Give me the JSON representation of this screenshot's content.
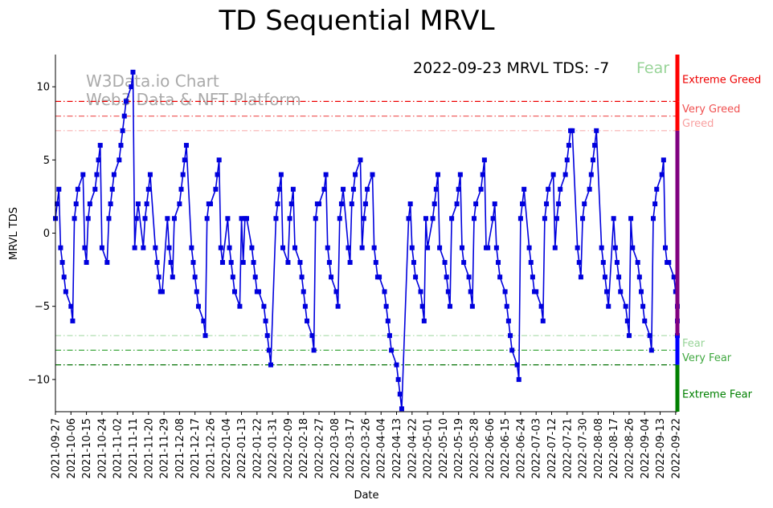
{
  "chart_data": {
    "type": "line",
    "title": "TD Sequential MRVL",
    "xlabel": "Date",
    "ylabel": "MRVL TDS",
    "ylim": [
      -12.2,
      12.2
    ],
    "yticks": [
      10,
      5,
      0,
      -5,
      -10
    ],
    "ytick_labels": [
      "10",
      "5",
      "0",
      "−5",
      "−10"
    ],
    "x_tick_labels": [
      "2021-09-27",
      "2021-10-06",
      "2021-10-15",
      "2021-10-24",
      "2021-11-02",
      "2021-11-11",
      "2021-11-20",
      "2021-11-29",
      "2021-12-08",
      "2021-12-17",
      "2021-12-26",
      "2022-01-04",
      "2022-01-13",
      "2022-01-22",
      "2022-01-31",
      "2022-02-09",
      "2022-02-18",
      "2022-02-27",
      "2022-03-08",
      "2022-03-17",
      "2022-03-26",
      "2022-04-04",
      "2022-04-13",
      "2022-04-22",
      "2022-05-01",
      "2022-05-10",
      "2022-05-19",
      "2022-05-28",
      "2022-06-06",
      "2022-06-15",
      "2022-06-24",
      "2022-07-03",
      "2022-07-12",
      "2022-07-21",
      "2022-07-30",
      "2022-08-08",
      "2022-08-17",
      "2022-08-26",
      "2022-09-04",
      "2022-09-13",
      "2022-09-22"
    ],
    "x_tick_index": [
      0,
      9,
      18,
      27,
      36,
      45,
      54,
      63,
      72,
      81,
      90,
      99,
      108,
      117,
      126,
      135,
      144,
      153,
      162,
      171,
      180,
      189,
      198,
      207,
      216,
      225,
      234,
      243,
      252,
      261,
      270,
      279,
      288,
      297,
      306,
      315,
      324,
      333,
      342,
      351,
      360
    ],
    "x_range_days": [
      0,
      361
    ],
    "series": [
      {
        "name": "MRVL TDS",
        "color": "#0000dd",
        "points": [
          [
            0,
            1
          ],
          [
            1,
            2
          ],
          [
            2,
            3
          ],
          [
            3,
            -1
          ],
          [
            4,
            -2
          ],
          [
            5,
            -3
          ],
          [
            6,
            -4
          ],
          [
            9,
            -5
          ],
          [
            10,
            -6
          ],
          [
            11,
            1
          ],
          [
            12,
            2
          ],
          [
            13,
            3
          ],
          [
            16,
            4
          ],
          [
            17,
            -1
          ],
          [
            18,
            -2
          ],
          [
            19,
            1
          ],
          [
            20,
            2
          ],
          [
            23,
            3
          ],
          [
            24,
            4
          ],
          [
            25,
            5
          ],
          [
            26,
            6
          ],
          [
            27,
            -1
          ],
          [
            30,
            -2
          ],
          [
            31,
            1
          ],
          [
            32,
            2
          ],
          [
            33,
            3
          ],
          [
            34,
            4
          ],
          [
            37,
            5
          ],
          [
            38,
            6
          ],
          [
            39,
            7
          ],
          [
            40,
            8
          ],
          [
            41,
            9
          ],
          [
            44,
            10
          ],
          [
            45,
            11
          ],
          [
            46,
            -1
          ],
          [
            47,
            1
          ],
          [
            48,
            2
          ],
          [
            51,
            -1
          ],
          [
            52,
            1
          ],
          [
            53,
            2
          ],
          [
            54,
            3
          ],
          [
            55,
            4
          ],
          [
            58,
            -1
          ],
          [
            59,
            -2
          ],
          [
            60,
            -3
          ],
          [
            61,
            -4
          ],
          [
            62,
            -4
          ],
          [
            65,
            1
          ],
          [
            66,
            -1
          ],
          [
            67,
            -2
          ],
          [
            68,
            -3
          ],
          [
            69,
            1
          ],
          [
            72,
            2
          ],
          [
            73,
            3
          ],
          [
            74,
            4
          ],
          [
            75,
            5
          ],
          [
            76,
            6
          ],
          [
            79,
            -1
          ],
          [
            80,
            -2
          ],
          [
            81,
            -3
          ],
          [
            82,
            -4
          ],
          [
            83,
            -5
          ],
          [
            86,
            -6
          ],
          [
            87,
            -7
          ],
          [
            88,
            1
          ],
          [
            89,
            2
          ],
          [
            90,
            2
          ],
          [
            93,
            3
          ],
          [
            94,
            4
          ],
          [
            95,
            5
          ],
          [
            96,
            -1
          ],
          [
            97,
            -2
          ],
          [
            100,
            1
          ],
          [
            101,
            -1
          ],
          [
            102,
            -2
          ],
          [
            103,
            -3
          ],
          [
            104,
            -4
          ],
          [
            107,
            -5
          ],
          [
            108,
            1
          ],
          [
            109,
            -2
          ],
          [
            110,
            1
          ],
          [
            111,
            1
          ],
          [
            114,
            -1
          ],
          [
            115,
            -2
          ],
          [
            116,
            -3
          ],
          [
            117,
            -4
          ],
          [
            118,
            -4
          ],
          [
            121,
            -5
          ],
          [
            122,
            -6
          ],
          [
            123,
            -7
          ],
          [
            124,
            -8
          ],
          [
            125,
            -9
          ],
          [
            128,
            1
          ],
          [
            129,
            2
          ],
          [
            130,
            3
          ],
          [
            131,
            4
          ],
          [
            132,
            -1
          ],
          [
            135,
            -2
          ],
          [
            136,
            1
          ],
          [
            137,
            2
          ],
          [
            138,
            3
          ],
          [
            139,
            -1
          ],
          [
            142,
            -2
          ],
          [
            143,
            -3
          ],
          [
            144,
            -4
          ],
          [
            145,
            -5
          ],
          [
            146,
            -6
          ],
          [
            149,
            -7
          ],
          [
            150,
            -8
          ],
          [
            151,
            1
          ],
          [
            152,
            2
          ],
          [
            153,
            2
          ],
          [
            156,
            3
          ],
          [
            157,
            4
          ],
          [
            158,
            -1
          ],
          [
            159,
            -2
          ],
          [
            160,
            -3
          ],
          [
            163,
            -4
          ],
          [
            164,
            -5
          ],
          [
            165,
            1
          ],
          [
            166,
            2
          ],
          [
            167,
            3
          ],
          [
            170,
            -1
          ],
          [
            171,
            -2
          ],
          [
            172,
            2
          ],
          [
            173,
            3
          ],
          [
            174,
            4
          ],
          [
            177,
            5
          ],
          [
            178,
            -1
          ],
          [
            179,
            1
          ],
          [
            180,
            2
          ],
          [
            181,
            3
          ],
          [
            184,
            4
          ],
          [
            185,
            -1
          ],
          [
            186,
            -2
          ],
          [
            187,
            -3
          ],
          [
            188,
            -3
          ],
          [
            191,
            -4
          ],
          [
            192,
            -5
          ],
          [
            193,
            -6
          ],
          [
            194,
            -7
          ],
          [
            195,
            -8
          ],
          [
            198,
            -9
          ],
          [
            199,
            -10
          ],
          [
            200,
            -11
          ],
          [
            201,
            -12
          ],
          [
            205,
            1
          ],
          [
            206,
            2
          ],
          [
            207,
            -1
          ],
          [
            208,
            -2
          ],
          [
            209,
            -3
          ],
          [
            212,
            -4
          ],
          [
            213,
            -5
          ],
          [
            214,
            -6
          ],
          [
            215,
            1
          ],
          [
            216,
            -1
          ],
          [
            219,
            1
          ],
          [
            220,
            2
          ],
          [
            221,
            3
          ],
          [
            222,
            4
          ],
          [
            223,
            -1
          ],
          [
            226,
            -2
          ],
          [
            227,
            -3
          ],
          [
            228,
            -4
          ],
          [
            229,
            -5
          ],
          [
            230,
            1
          ],
          [
            233,
            2
          ],
          [
            234,
            3
          ],
          [
            235,
            4
          ],
          [
            236,
            -1
          ],
          [
            237,
            -2
          ],
          [
            240,
            -3
          ],
          [
            241,
            -4
          ],
          [
            242,
            -5
          ],
          [
            243,
            1
          ],
          [
            244,
            2
          ],
          [
            247,
            3
          ],
          [
            248,
            4
          ],
          [
            249,
            5
          ],
          [
            250,
            -1
          ],
          [
            251,
            -1
          ],
          [
            254,
            1
          ],
          [
            255,
            2
          ],
          [
            256,
            -1
          ],
          [
            257,
            -2
          ],
          [
            258,
            -3
          ],
          [
            261,
            -4
          ],
          [
            262,
            -5
          ],
          [
            263,
            -6
          ],
          [
            264,
            -7
          ],
          [
            265,
            -8
          ],
          [
            268,
            -9
          ],
          [
            269,
            -10
          ],
          [
            270,
            1
          ],
          [
            271,
            2
          ],
          [
            272,
            3
          ],
          [
            275,
            -1
          ],
          [
            276,
            -2
          ],
          [
            277,
            -3
          ],
          [
            278,
            -4
          ],
          [
            279,
            -4
          ],
          [
            282,
            -5
          ],
          [
            283,
            -6
          ],
          [
            284,
            1
          ],
          [
            285,
            2
          ],
          [
            286,
            3
          ],
          [
            289,
            4
          ],
          [
            290,
            -1
          ],
          [
            291,
            1
          ],
          [
            292,
            2
          ],
          [
            293,
            3
          ],
          [
            296,
            4
          ],
          [
            297,
            5
          ],
          [
            298,
            6
          ],
          [
            299,
            7
          ],
          [
            300,
            7
          ],
          [
            303,
            -1
          ],
          [
            304,
            -2
          ],
          [
            305,
            -3
          ],
          [
            306,
            1
          ],
          [
            307,
            2
          ],
          [
            310,
            3
          ],
          [
            311,
            4
          ],
          [
            312,
            5
          ],
          [
            313,
            6
          ],
          [
            314,
            7
          ],
          [
            317,
            -1
          ],
          [
            318,
            -2
          ],
          [
            319,
            -3
          ],
          [
            320,
            -4
          ],
          [
            321,
            -5
          ],
          [
            324,
            1
          ],
          [
            325,
            -1
          ],
          [
            326,
            -2
          ],
          [
            327,
            -3
          ],
          [
            328,
            -4
          ],
          [
            331,
            -5
          ],
          [
            332,
            -6
          ],
          [
            333,
            -7
          ],
          [
            334,
            1
          ],
          [
            335,
            -1
          ],
          [
            338,
            -2
          ],
          [
            339,
            -3
          ],
          [
            340,
            -4
          ],
          [
            341,
            -5
          ],
          [
            342,
            -6
          ],
          [
            345,
            -7
          ],
          [
            346,
            -8
          ],
          [
            347,
            1
          ],
          [
            348,
            2
          ],
          [
            349,
            3
          ],
          [
            352,
            4
          ],
          [
            353,
            5
          ],
          [
            354,
            -1
          ],
          [
            355,
            -2
          ],
          [
            356,
            -2
          ],
          [
            359,
            -3
          ],
          [
            360,
            -4
          ],
          [
            361,
            -5
          ],
          [
            361,
            -6
          ],
          [
            361,
            -7
          ]
        ]
      }
    ],
    "thresholds": [
      {
        "value": 9,
        "color": "#ee0000",
        "label": "Very Greed line"
      },
      {
        "value": 8,
        "color": "#f06060",
        "label": ""
      },
      {
        "value": 7,
        "color": "#f8b0b0",
        "label": ""
      },
      {
        "value": -7,
        "color": "#a8dca8",
        "label": ""
      },
      {
        "value": -8,
        "color": "#40a840",
        "label": ""
      },
      {
        "value": -9,
        "color": "#007000",
        "label": ""
      }
    ],
    "zone_bar": [
      {
        "from": 9.0,
        "to": 12.2,
        "color": "#ff0000"
      },
      {
        "from": 7.0,
        "to": 9.0,
        "color": "#ff0000"
      },
      {
        "from": -7.0,
        "to": 7.0,
        "color": "#800080"
      },
      {
        "from": -9.0,
        "to": -7.0,
        "color": "#0000ff"
      },
      {
        "from": -12.2,
        "to": -9.0,
        "color": "#008000"
      }
    ],
    "zone_labels": [
      {
        "text": "Extreme Greed",
        "y": 10.5,
        "color": "#ee0000"
      },
      {
        "text": "Very Greed",
        "y": 8.5,
        "color": "#f05050"
      },
      {
        "text": "Greed",
        "y": 7.5,
        "color": "#f8a0a0"
      },
      {
        "text": "Fear",
        "y": -7.5,
        "color": "#98d498"
      },
      {
        "text": "Very Fear",
        "y": -8.5,
        "color": "#40a840"
      },
      {
        "text": "Extreme Fear",
        "y": -11.0,
        "color": "#008000"
      }
    ],
    "annotation": {
      "main": "2022-09-23 MRVL TDS: -7",
      "status": "Fear",
      "status_color": "#98d498"
    },
    "watermark": {
      "line1": "W3Data.io Chart",
      "line2": "Web3 Data & NFT Platform"
    }
  }
}
